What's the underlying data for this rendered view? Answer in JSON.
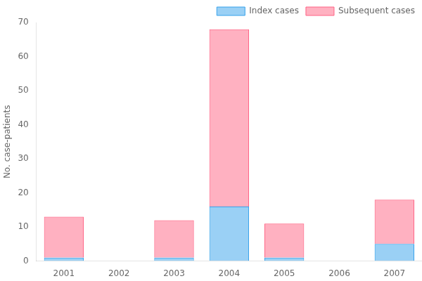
{
  "chart_data": {
    "type": "bar",
    "categories": [
      "2001",
      "2002",
      "2003",
      "2004",
      "2005",
      "2006",
      "2007"
    ],
    "series": [
      {
        "name": "Index cases",
        "values": [
          1,
          0,
          1,
          16,
          1,
          0,
          5
        ]
      },
      {
        "name": "Subsequent cases",
        "values": [
          12,
          0,
          11,
          52,
          10,
          0,
          13
        ]
      }
    ],
    "ylabel": "No. case-patients",
    "ylim": [
      0,
      70
    ],
    "yticks": [
      0,
      10,
      20,
      30,
      40,
      50,
      60,
      70
    ],
    "stacked": true,
    "grid": false,
    "legend": "upper right"
  }
}
